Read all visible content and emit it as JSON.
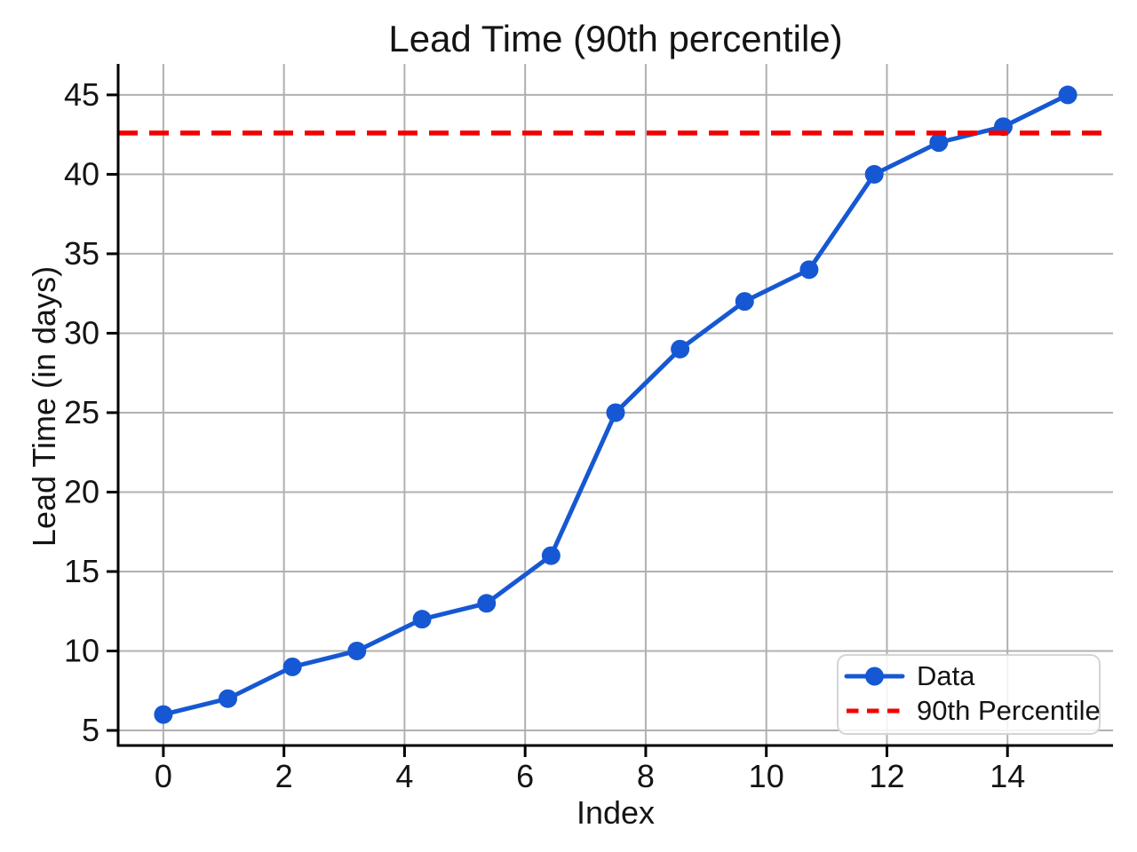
{
  "chart_data": {
    "type": "line",
    "title": "Lead Time (90th percentile)",
    "xlabel": "Index",
    "ylabel": "Lead Time (in days)",
    "series": [
      {
        "name": "Data",
        "color": "#1658d3",
        "marker": "circle",
        "x": [
          0,
          1.07,
          2.14,
          3.21,
          4.29,
          5.36,
          6.43,
          7.5,
          8.57,
          9.64,
          10.71,
          11.79,
          12.86,
          13.93,
          15
        ],
        "y": [
          6,
          7,
          9,
          10,
          12,
          13,
          16,
          25,
          29,
          32,
          34,
          40,
          42,
          43,
          45
        ]
      },
      {
        "name": "90th Percentile",
        "color": "#f40000",
        "style": "dashed",
        "value": 42.6
      }
    ],
    "x_ticks": [
      "0",
      "2",
      "4",
      "6",
      "8",
      "10",
      "12",
      "14"
    ],
    "x_tick_values": [
      0,
      2,
      4,
      6,
      8,
      10,
      12,
      14
    ],
    "y_ticks": [
      "5",
      "10",
      "15",
      "20",
      "25",
      "30",
      "35",
      "40",
      "45"
    ],
    "y_tick_values": [
      5,
      10,
      15,
      20,
      25,
      30,
      35,
      40,
      45
    ],
    "xlim": [
      -0.75,
      15.75
    ],
    "ylim": [
      4.05,
      46.95
    ],
    "grid": true,
    "legend": {
      "position": "lower right",
      "entries": [
        "Data",
        "90th Percentile"
      ]
    }
  },
  "style_colors": {
    "grid": "#b0b0b0",
    "axis": "#000000",
    "text": "#141414"
  }
}
